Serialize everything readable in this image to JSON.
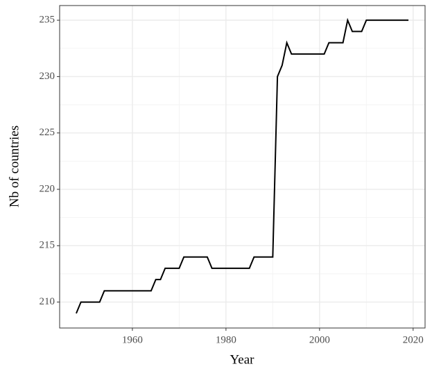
{
  "chart_data": {
    "type": "line",
    "x_label": "Year",
    "y_label": "Nb of countries",
    "x": [
      1948,
      1949,
      1950,
      1951,
      1952,
      1953,
      1954,
      1955,
      1956,
      1957,
      1958,
      1959,
      1960,
      1961,
      1962,
      1963,
      1964,
      1965,
      1966,
      1967,
      1968,
      1969,
      1970,
      1971,
      1972,
      1973,
      1974,
      1975,
      1976,
      1977,
      1978,
      1979,
      1980,
      1981,
      1982,
      1983,
      1984,
      1985,
      1986,
      1987,
      1988,
      1989,
      1990,
      1991,
      1992,
      1993,
      1994,
      1995,
      1996,
      1997,
      1998,
      1999,
      2000,
      2001,
      2002,
      2003,
      2004,
      2005,
      2006,
      2007,
      2008,
      2009,
      2010,
      2011,
      2012,
      2013,
      2014,
      2015,
      2016,
      2017,
      2018,
      2019
    ],
    "values": [
      209,
      210,
      210,
      210,
      210,
      210,
      211,
      211,
      211,
      211,
      211,
      211,
      211,
      211,
      211,
      211,
      211,
      212,
      212,
      213,
      213,
      213,
      213,
      214,
      214,
      214,
      214,
      214,
      214,
      213,
      213,
      213,
      213,
      213,
      213,
      213,
      213,
      213,
      214,
      214,
      214,
      214,
      214,
      230,
      231,
      233,
      232,
      232,
      232,
      232,
      232,
      232,
      232,
      232,
      233,
      233,
      233,
      233,
      235,
      234,
      234,
      234,
      235,
      235,
      235,
      235,
      235,
      235,
      235,
      235,
      235,
      235
    ],
    "color": "#000000",
    "xlim": [
      1944.45,
      2022.55
    ],
    "ylim": [
      207.7,
      236.3
    ],
    "xticks": [
      1960,
      1980,
      2000,
      2020
    ],
    "yticks": [
      210,
      215,
      220,
      225,
      230,
      235
    ],
    "grid": true,
    "minor_grid": true
  }
}
